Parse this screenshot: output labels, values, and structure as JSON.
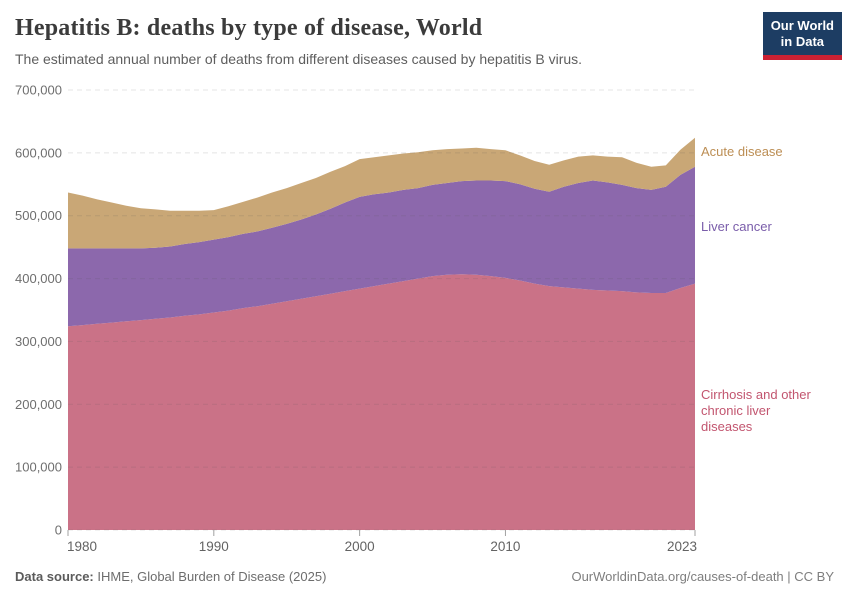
{
  "header": {
    "logo": {
      "line1": "Our World",
      "line2": "in Data",
      "bg": "#1d3d63",
      "accent": "#cb2133"
    }
  },
  "chart_data": {
    "type": "area",
    "stacked": true,
    "title": "Hepatitis B: deaths by type of disease, World",
    "subtitle": "The estimated annual number of deaths from different diseases caused by hepatitis B virus.",
    "xlabel": "",
    "ylabel": "",
    "ylim": [
      0,
      700000
    ],
    "grid": "dashed-horizontal",
    "legend_position": "right",
    "x": [
      1980,
      1981,
      1982,
      1983,
      1984,
      1985,
      1986,
      1987,
      1988,
      1989,
      1990,
      1991,
      1992,
      1993,
      1994,
      1995,
      1996,
      1997,
      1998,
      1999,
      2000,
      2001,
      2002,
      2003,
      2004,
      2005,
      2006,
      2007,
      2008,
      2009,
      2010,
      2011,
      2012,
      2013,
      2014,
      2015,
      2016,
      2017,
      2018,
      2019,
      2020,
      2021,
      2022,
      2023
    ],
    "xticks": [
      1980,
      1990,
      2000,
      2010,
      2023
    ],
    "xtick_labels": [
      "1980",
      "1990",
      "2000",
      "2010",
      "2023"
    ],
    "ytick_values": [
      0,
      100000,
      200000,
      300000,
      400000,
      500000,
      600000,
      700000
    ],
    "ytick_labels": [
      "0",
      "100,000",
      "200,000",
      "300,000",
      "400,000",
      "500,000",
      "600,000",
      "700,000"
    ],
    "series": [
      {
        "name": "Cirrhosis and other chronic liver diseases",
        "color": "#ca7287",
        "label_color": "#c2556f",
        "values": [
          324000,
          326000,
          328000,
          330000,
          332000,
          334000,
          336000,
          338000,
          341000,
          343000,
          346000,
          349000,
          353000,
          356000,
          360000,
          364000,
          368000,
          372000,
          376000,
          380000,
          384000,
          388000,
          392000,
          396000,
          400000,
          404000,
          406000,
          407000,
          406000,
          404000,
          401000,
          397000,
          392000,
          388000,
          386000,
          384000,
          382000,
          381000,
          380000,
          378000,
          377000,
          377000,
          385000,
          392000
        ]
      },
      {
        "name": "Liver cancer",
        "color": "#8c68ac",
        "label_color": "#7a5daa",
        "values": [
          124000,
          122000,
          120000,
          118000,
          116000,
          114000,
          113000,
          113000,
          114000,
          115000,
          116000,
          117000,
          118000,
          119000,
          121000,
          123000,
          126000,
          130000,
          135000,
          141000,
          146000,
          146000,
          145000,
          145000,
          144000,
          145000,
          146000,
          148000,
          150000,
          152000,
          154000,
          153000,
          151000,
          150000,
          160000,
          168000,
          174000,
          172000,
          169000,
          166000,
          164000,
          169000,
          180000,
          186000
        ]
      },
      {
        "name": "Acute disease",
        "color": "#c9a776",
        "label_color": "#bc8e54",
        "values": [
          89000,
          84000,
          78000,
          73000,
          68000,
          64000,
          61000,
          57000,
          53000,
          50000,
          47000,
          49000,
          51000,
          54000,
          56000,
          57000,
          58000,
          58000,
          59000,
          58000,
          60000,
          59000,
          59000,
          58000,
          57000,
          55000,
          54000,
          52000,
          52000,
          50000,
          49000,
          46000,
          44000,
          43000,
          42000,
          42000,
          40000,
          41000,
          44000,
          40000,
          37000,
          34000,
          40000,
          46000
        ]
      }
    ]
  },
  "footer": {
    "source_label": "Data source:",
    "source_value": " IHME, Global Burden of Disease (2025)",
    "attribution": "OurWorldinData.org/causes-of-death | CC BY"
  }
}
